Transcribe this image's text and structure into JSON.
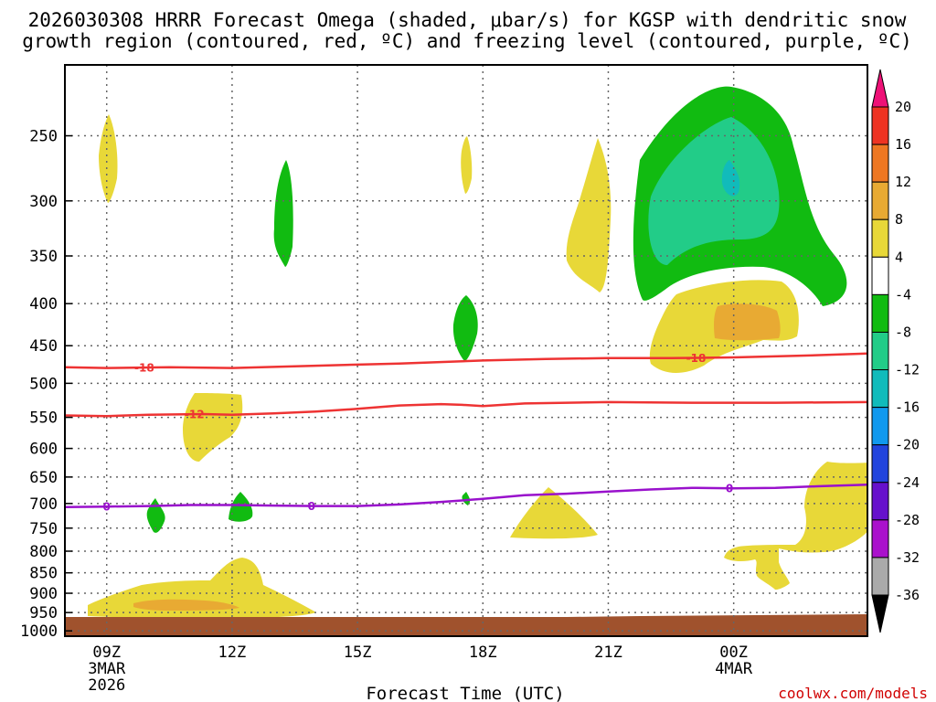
{
  "chart_data": {
    "type": "time-height cross section (filled contour)",
    "title_line1": "2026030308 HRRR Forecast Omega (shaded, μbar/s) for KGSP with dendritic snow",
    "title_line2": "growth region (contoured, red, ºC) and freezing level (contoured, purple, ºC)",
    "xlabel": "Forecast Time (UTC)",
    "credit": "coolwx.com/models",
    "x_range_hours": [
      8,
      27.2
    ],
    "x_ticks": [
      {
        "hour": 9,
        "label": "09Z",
        "sub1": "3MAR",
        "sub2": "2026"
      },
      {
        "hour": 12,
        "label": "12Z",
        "sub1": "",
        "sub2": ""
      },
      {
        "hour": 15,
        "label": "15Z",
        "sub1": "",
        "sub2": ""
      },
      {
        "hour": 18,
        "label": "18Z",
        "sub1": "",
        "sub2": ""
      },
      {
        "hour": 21,
        "label": "21Z",
        "sub1": "",
        "sub2": ""
      },
      {
        "hour": 24,
        "label": "00Z",
        "sub1": "4MAR",
        "sub2": ""
      }
    ],
    "y_axis": "pressure (hPa), log scale",
    "y_range": [
      1015,
      205
    ],
    "y_ticks": [
      250,
      300,
      350,
      400,
      450,
      500,
      550,
      600,
      650,
      700,
      750,
      800,
      850,
      900,
      950,
      1000
    ],
    "colorbar": {
      "levels": [
        20,
        16,
        12,
        8,
        4,
        -4,
        -8,
        -12,
        -16,
        -20,
        -24,
        -28,
        -32,
        -36
      ],
      "bins": [
        {
          "range": "above 20",
          "color": "#ee1177"
        },
        {
          "range": "16 to 20",
          "color": "#ee3322"
        },
        {
          "range": "12 to 16",
          "color": "#ee7722"
        },
        {
          "range": "8 to 12",
          "color": "#e8aa33"
        },
        {
          "range": "4 to 8",
          "color": "#e8d838"
        },
        {
          "range": "-4 to 4",
          "color": "#ffffff"
        },
        {
          "range": "-8 to -4",
          "color": "#11bb11"
        },
        {
          "range": "-12 to -8",
          "color": "#22cc88"
        },
        {
          "range": "-16 to -12",
          "color": "#11bbbb"
        },
        {
          "range": "-20 to -16",
          "color": "#1199ee"
        },
        {
          "range": "-24 to -20",
          "color": "#2244dd"
        },
        {
          "range": "-28 to -24",
          "color": "#6611cc"
        },
        {
          "range": "-32 to -28",
          "color": "#aa11cc"
        },
        {
          "range": "-36 to -32",
          "color": "#aaaaaa"
        },
        {
          "range": "below -36",
          "color": "#000000"
        }
      ]
    },
    "contours": [
      {
        "name": "dgz-18",
        "value": -18,
        "label": "-18",
        "color": "#ee3333",
        "points": [
          [
            8,
            478
          ],
          [
            9,
            479
          ],
          [
            10.5,
            478
          ],
          [
            12,
            479
          ],
          [
            14,
            476
          ],
          [
            16,
            473
          ],
          [
            18,
            469
          ],
          [
            19.5,
            467
          ],
          [
            21,
            466
          ],
          [
            22.5,
            466
          ],
          [
            24,
            465
          ],
          [
            25.5,
            463
          ],
          [
            27.2,
            460
          ]
        ],
        "label_hours": [
          9.9,
          23.1
        ]
      },
      {
        "name": "dgz-12",
        "value": -12,
        "label": "-12",
        "color": "#ee3333",
        "points": [
          [
            8,
            547
          ],
          [
            9,
            548
          ],
          [
            10,
            546
          ],
          [
            11.3,
            545
          ],
          [
            12,
            546
          ],
          [
            13,
            544
          ],
          [
            14,
            541
          ],
          [
            15,
            537
          ],
          [
            16,
            532
          ],
          [
            17,
            530
          ],
          [
            17.5,
            531
          ],
          [
            18,
            533
          ],
          [
            19,
            529
          ],
          [
            21,
            527
          ],
          [
            23,
            528
          ],
          [
            25,
            528
          ],
          [
            27.2,
            527
          ]
        ],
        "label_hours": [
          11.1
        ]
      },
      {
        "name": "freezing-level",
        "value": 0,
        "label": "0",
        "color": "#9911cc",
        "points": [
          [
            8,
            707
          ],
          [
            9,
            706
          ],
          [
            10,
            705
          ],
          [
            11,
            703
          ],
          [
            12,
            703
          ],
          [
            13,
            704
          ],
          [
            14,
            705
          ],
          [
            15,
            705
          ],
          [
            16,
            702
          ],
          [
            17,
            697
          ],
          [
            18,
            691
          ],
          [
            19,
            684
          ],
          [
            20,
            681
          ],
          [
            21,
            677
          ],
          [
            22,
            673
          ],
          [
            23,
            670
          ],
          [
            24,
            671
          ],
          [
            25,
            670
          ],
          [
            26,
            667
          ],
          [
            27.2,
            664
          ]
        ],
        "label_hours": [
          9,
          13.9,
          23.9
        ]
      }
    ],
    "terrain": {
      "color": "#a0522d",
      "surface_pressure_hpa": 990
    }
  }
}
